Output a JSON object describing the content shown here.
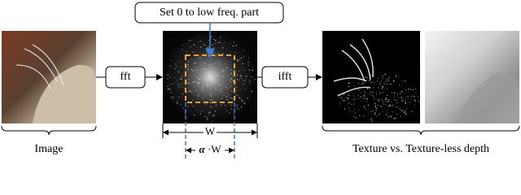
{
  "callout": {
    "label": "Set 0 to low freq. part"
  },
  "steps": [
    {
      "label": "fft"
    },
    {
      "label": "ifft"
    }
  ],
  "dimensions": {
    "width": "W",
    "inner_symbol": "α",
    "inner_suffix": " ·W"
  },
  "captions": {
    "input": "Image",
    "output": "Texture vs. Texture-less depth"
  }
}
